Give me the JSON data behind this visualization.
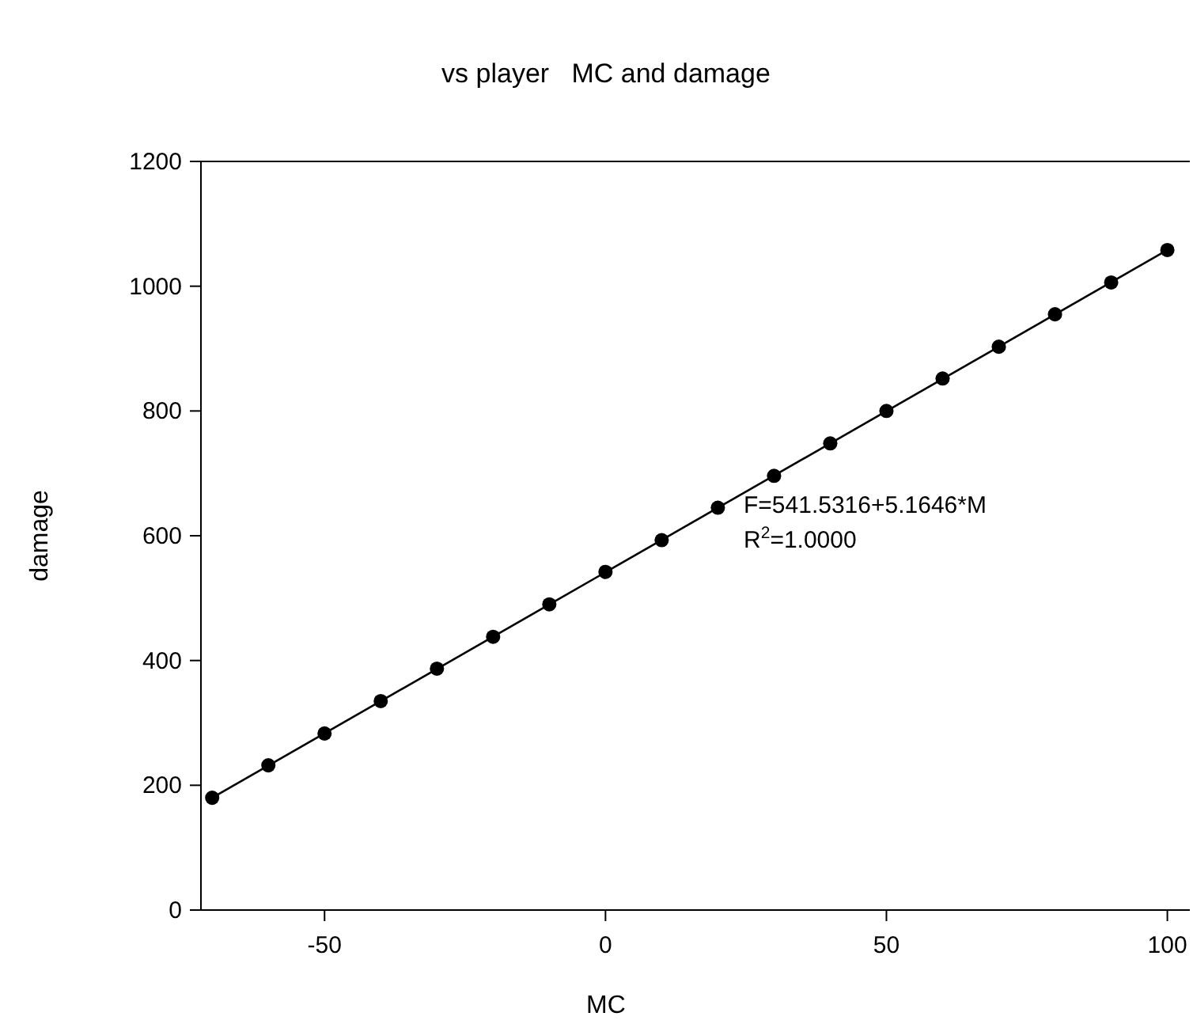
{
  "chart_data": {
    "type": "scatter",
    "title": "vs player   MC and damage",
    "xlabel": "MC",
    "ylabel": "damage",
    "annotations": [
      "F=541.5316+5.1646*M",
      "R$^{2}$=1.0000"
    ],
    "xlim": [
      -72,
      104
    ],
    "xticks": [
      -50,
      0,
      50,
      100
    ],
    "ylim": [
      0,
      1200
    ],
    "yticks": [
      0,
      200,
      400,
      600,
      800,
      1000,
      1200
    ],
    "grid": false,
    "series": [
      {
        "color": "#000000",
        "marker": "circle",
        "x": [
          -70,
          -60,
          -50,
          -40,
          -30,
          -20,
          -10,
          0,
          10,
          20,
          30,
          40,
          50,
          60,
          70,
          80,
          90,
          100
        ],
        "values": [
          180,
          232,
          283,
          335,
          387,
          438,
          490,
          542,
          593,
          645,
          696,
          748,
          800,
          852,
          903,
          955,
          1006,
          1058
        ]
      },
      {
        "type": "line",
        "color": "#000000",
        "marker": "none",
        "line_style": "solid",
        "x": [
          -70,
          100
        ],
        "values": [
          180,
          1058
        ]
      }
    ]
  }
}
